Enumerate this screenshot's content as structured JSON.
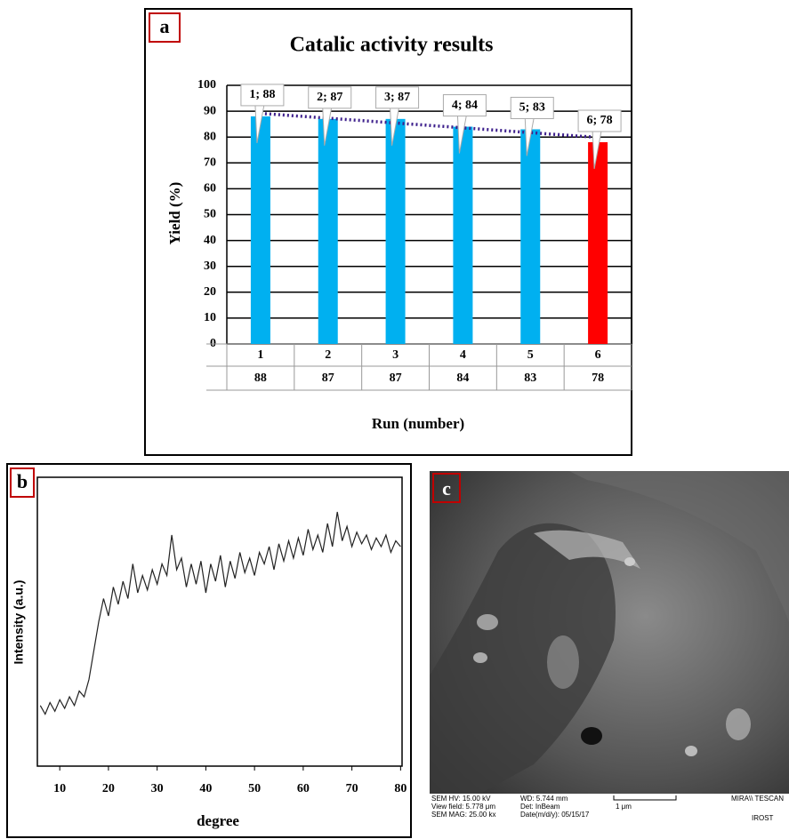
{
  "chart_data": [
    {
      "type": "bar",
      "panel_label": "a",
      "title": "Catalic activity results",
      "y_label": "Yield (%)",
      "x_label": "Run (number)",
      "categories": [
        "1",
        "2",
        "3",
        "4",
        "5",
        "6"
      ],
      "values": [
        88,
        87,
        87,
        84,
        83,
        78
      ],
      "value_labels": [
        "1; 88",
        "2; 87",
        "3; 87",
        "4; 84",
        "5; 83",
        "6; 78"
      ],
      "colors": [
        "#00b0f0",
        "#00b0f0",
        "#00b0f0",
        "#00b0f0",
        "#00b0f0",
        "#ff0000"
      ],
      "ylim": [
        0,
        100
      ],
      "yticks": [
        0,
        10,
        20,
        30,
        40,
        50,
        60,
        70,
        80,
        90,
        100
      ],
      "grid": true,
      "trendline": true,
      "trendline_color": "#3d1f8c"
    },
    {
      "type": "line",
      "panel_label": "b",
      "y_label": "Intensity (a.u.)",
      "x_label": "degree",
      "x": [
        6,
        7,
        8,
        9,
        10,
        11,
        12,
        13,
        14,
        15,
        16,
        17,
        18,
        19,
        20,
        21,
        22,
        23,
        24,
        25,
        26,
        27,
        28,
        29,
        30,
        31,
        32,
        33,
        34,
        35,
        36,
        37,
        38,
        39,
        40,
        41,
        42,
        43,
        44,
        45,
        46,
        47,
        48,
        49,
        50,
        51,
        52,
        53,
        54,
        55,
        56,
        57,
        58,
        59,
        60,
        61,
        62,
        63,
        64,
        65,
        66,
        67,
        68,
        69,
        70,
        71,
        72,
        73,
        74,
        75,
        76,
        77,
        78,
        79,
        80
      ],
      "values": [
        21,
        18,
        22,
        19,
        23,
        20,
        24,
        21,
        26,
        24,
        30,
        40,
        50,
        58,
        52,
        62,
        56,
        64,
        58,
        70,
        60,
        66,
        61,
        68,
        63,
        70,
        66,
        80,
        68,
        72,
        62,
        70,
        63,
        71,
        60,
        70,
        64,
        73,
        62,
        71,
        65,
        74,
        67,
        72,
        66,
        74,
        70,
        76,
        68,
        77,
        71,
        78,
        72,
        79,
        73,
        82,
        75,
        80,
        74,
        84,
        76,
        88,
        78,
        83,
        76,
        81,
        77,
        80,
        75,
        79,
        76,
        80,
        74,
        78,
        76
      ],
      "color": "#222222",
      "xlim": [
        5.4,
        80.3
      ],
      "ylim": [
        0,
        100
      ],
      "xticks": [
        10,
        20,
        30,
        40,
        50,
        60,
        70,
        80
      ]
    }
  ],
  "image_panel": {
    "panel_label": "c",
    "info": [
      "SEM HV: 15.00 kV",
      "View field: 5.778 μm",
      "SEM MAG: 25.00 kx",
      "WD: 5.744 mm",
      "Det: InBeam",
      "Date(m/d/y): 05/15/17"
    ],
    "scale_bar": "1 μm",
    "brand": "MIRA\\\\ TESCAN",
    "institute": "IROST"
  }
}
